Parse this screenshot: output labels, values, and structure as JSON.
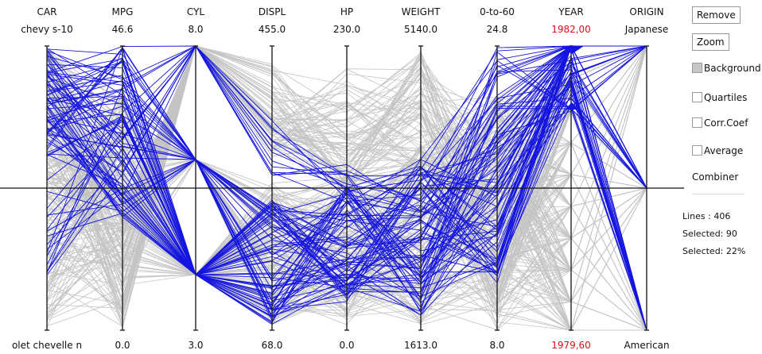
{
  "axes": [
    {
      "name": "CAR",
      "max": "chevy s-10",
      "min": "olet chevelle n"
    },
    {
      "name": "MPG",
      "max": "46.6",
      "min": "0.0"
    },
    {
      "name": "CYL",
      "max": "8.0",
      "min": "3.0"
    },
    {
      "name": "DISPL",
      "max": "455.0",
      "min": "68.0"
    },
    {
      "name": "HP",
      "max": "230.0",
      "min": "0.0"
    },
    {
      "name": "WEIGHT",
      "max": "5140.0",
      "min": "1613.0"
    },
    {
      "name": "0-to-60",
      "max": "24.8",
      "min": "8.0"
    },
    {
      "name": "YEAR",
      "max": "1982,00",
      "min": "1979,60"
    },
    {
      "name": "ORIGIN",
      "max": "Japanese",
      "min": "American"
    }
  ],
  "controls": {
    "remove": "Remove",
    "zoom": "Zoom",
    "background": "Background",
    "quartiles": "Quartiles",
    "corrcoef": "Corr.Coef",
    "average": "Average",
    "combiner": "Combiner"
  },
  "stats": {
    "lines": "Lines     : 406",
    "selected_count": "Selected: 90",
    "selected_pct": "Selected: 22%"
  },
  "colors": {
    "selected": "#1515e0",
    "background_lines": "#c4c4c4",
    "highlight_label": "#e0101c"
  },
  "chart_data": {
    "type": "parallel-coordinates",
    "records_total": 406,
    "records_selected": 90,
    "selected_percent": 22
  }
}
